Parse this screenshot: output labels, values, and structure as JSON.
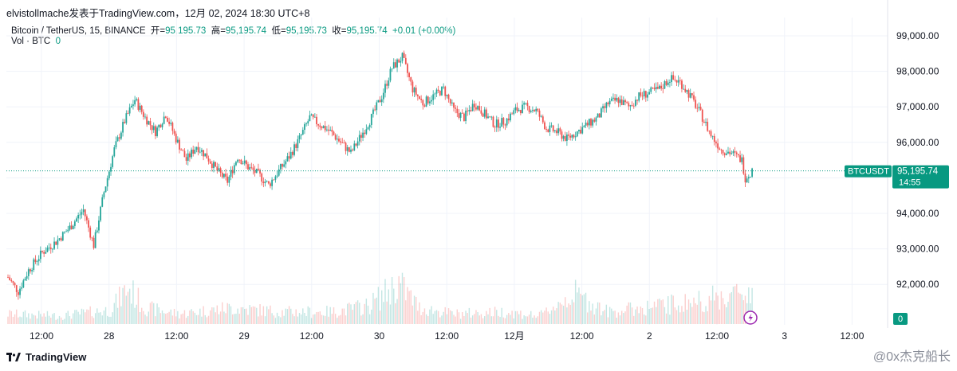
{
  "header": {
    "title": "elvistollmache发表于TradingView.com，12月 02, 2024 18:30 UTC+8"
  },
  "legend": {
    "symbol": "Bitcoin / TetherUS, 15, BINANCE",
    "open_label": "开=",
    "open": "95,195.73",
    "high_label": "高=",
    "high": "95,195.74",
    "low_label": "低=",
    "low": "95,195.73",
    "close_label": "收=",
    "close": "95,195.74",
    "change": "+0.01 (+0.00%)",
    "vol_label": "Vol · BTC",
    "vol_value": "0"
  },
  "price_tag": {
    "symbol": "BTCUSDT",
    "price": "95,195.74",
    "countdown": "14:55"
  },
  "vol_tag": "0",
  "footer": {
    "brand": "TradingView",
    "watermark": "@0x杰克船长"
  },
  "colors": {
    "up": "#26a69a",
    "down": "#ef5350",
    "last_price": "#089981",
    "grid": "#f0f3fa"
  },
  "chart_data": {
    "type": "candlestick",
    "interval": "15",
    "y_ticks": [
      "99,000.00",
      "98,000.00",
      "97,000.00",
      "96,000.00",
      "95,000.00",
      "94,000.00",
      "93,000.00",
      "92,000.00"
    ],
    "ylim": [
      91000,
      99300
    ],
    "x_ticks": [
      "12:00",
      "28",
      "12:00",
      "29",
      "12:00",
      "30",
      "12:00",
      "12月",
      "12:00",
      "2",
      "12:00",
      "3",
      "12:00"
    ],
    "last_price": 95195.74,
    "price_path": [
      [
        0,
        92200
      ],
      [
        6,
        91800
      ],
      [
        12,
        92400
      ],
      [
        20,
        92900
      ],
      [
        28,
        93200
      ],
      [
        36,
        93600
      ],
      [
        44,
        94100
      ],
      [
        50,
        93100
      ],
      [
        56,
        94600
      ],
      [
        62,
        95800
      ],
      [
        68,
        96600
      ],
      [
        74,
        97200
      ],
      [
        80,
        96700
      ],
      [
        86,
        96300
      ],
      [
        92,
        96800
      ],
      [
        98,
        96100
      ],
      [
        104,
        95500
      ],
      [
        110,
        95900
      ],
      [
        116,
        95600
      ],
      [
        122,
        95200
      ],
      [
        128,
        94900
      ],
      [
        134,
        95600
      ],
      [
        140,
        95300
      ],
      [
        146,
        95100
      ],
      [
        152,
        94800
      ],
      [
        158,
        95200
      ],
      [
        164,
        95600
      ],
      [
        170,
        96100
      ],
      [
        176,
        96700
      ],
      [
        182,
        96500
      ],
      [
        188,
        96300
      ],
      [
        194,
        96000
      ],
      [
        200,
        95700
      ],
      [
        206,
        96200
      ],
      [
        212,
        96700
      ],
      [
        218,
        97300
      ],
      [
        224,
        98100
      ],
      [
        230,
        98400
      ],
      [
        236,
        97500
      ],
      [
        242,
        97100
      ],
      [
        248,
        97300
      ],
      [
        254,
        97500
      ],
      [
        260,
        96900
      ],
      [
        266,
        96700
      ],
      [
        272,
        97100
      ],
      [
        278,
        96800
      ],
      [
        284,
        96500
      ],
      [
        290,
        96600
      ],
      [
        296,
        96900
      ],
      [
        302,
        97000
      ],
      [
        308,
        96900
      ],
      [
        314,
        96400
      ],
      [
        320,
        96300
      ],
      [
        326,
        96100
      ],
      [
        332,
        96300
      ],
      [
        338,
        96500
      ],
      [
        344,
        96700
      ],
      [
        350,
        97100
      ],
      [
        356,
        97200
      ],
      [
        362,
        97000
      ],
      [
        368,
        97300
      ],
      [
        374,
        97400
      ],
      [
        380,
        97500
      ],
      [
        386,
        97800
      ],
      [
        392,
        97700
      ],
      [
        398,
        97300
      ],
      [
        404,
        96800
      ],
      [
        410,
        96200
      ],
      [
        416,
        95800
      ],
      [
        422,
        95700
      ],
      [
        428,
        95500
      ],
      [
        430,
        95000
      ],
      [
        434,
        95200
      ]
    ],
    "volume_path": [
      [
        0,
        0.25
      ],
      [
        30,
        0.2
      ],
      [
        60,
        0.35
      ],
      [
        70,
        0.9
      ],
      [
        80,
        0.4
      ],
      [
        100,
        0.25
      ],
      [
        130,
        0.4
      ],
      [
        160,
        0.3
      ],
      [
        190,
        0.3
      ],
      [
        210,
        0.45
      ],
      [
        228,
        1.0
      ],
      [
        240,
        0.4
      ],
      [
        260,
        0.25
      ],
      [
        290,
        0.3
      ],
      [
        310,
        0.2
      ],
      [
        330,
        0.75
      ],
      [
        350,
        0.3
      ],
      [
        380,
        0.45
      ],
      [
        400,
        0.55
      ],
      [
        420,
        0.7
      ],
      [
        432,
        0.8
      ]
    ]
  }
}
